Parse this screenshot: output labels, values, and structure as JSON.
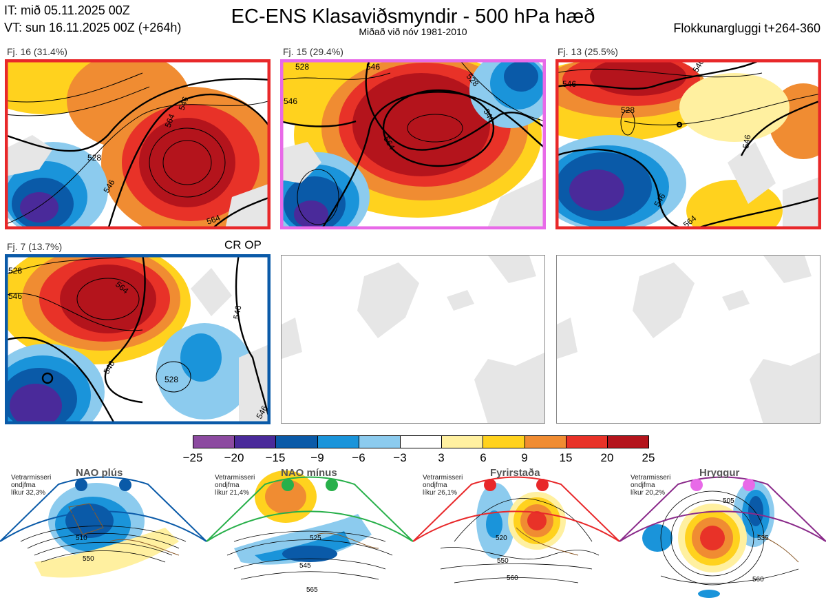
{
  "header": {
    "it_line": "IT: mið 05.11.2025 00Z",
    "vt_line": "VT: sun 16.11.2025 00Z  (+264h)",
    "title": "EC-ENS Klasaviðsmyndir - 500 hPa hæð",
    "subtitle": "Miðað við nóv 1981-2010",
    "window": "Flokkunargluggi t+264-360"
  },
  "clusters": [
    {
      "label": "Fj. 16 (31.4%)",
      "border": "#e8282a",
      "contours": [
        "528",
        "546",
        "564",
        "546",
        "564"
      ]
    },
    {
      "label": "Fj. 15 (29.4%)",
      "border": "#e86ae8",
      "contours": [
        "528",
        "546",
        "564",
        "546",
        "528",
        "546"
      ]
    },
    {
      "label": "Fj. 13 (25.5%)",
      "border": "#e8282a",
      "contours": [
        "546",
        "528",
        "546",
        "564",
        "546",
        "546"
      ]
    },
    {
      "label": "Fj. 7 (13.7%)",
      "border": "#0a5aa8",
      "contours": [
        "528",
        "546",
        "564",
        "546",
        "528",
        "546",
        "546"
      ],
      "tag": "CR OP"
    }
  ],
  "colorbar": {
    "colors": [
      "#8c4aa0",
      "#4a2a9a",
      "#0a5aa8",
      "#1a94da",
      "#8ccbee",
      "#ffffff",
      "#fff0a0",
      "#ffd21e",
      "#f08c32",
      "#e83228",
      "#b4141c"
    ],
    "ticks": [
      "−25",
      "−20",
      "−15",
      "−9",
      "−6",
      "−3",
      "3",
      "6",
      "9",
      "15",
      "20",
      "25"
    ]
  },
  "regimes": [
    {
      "title": "NAO plús",
      "info": [
        "Vetrarmisseri",
        "ondjfma",
        "líkur 32,3%"
      ],
      "color": "#0a5aa8",
      "contours": [
        "510",
        "550"
      ]
    },
    {
      "title": "NAO mínus",
      "info": [
        "Vetrarmisseri",
        "ondjfma",
        "líkur 21,4%"
      ],
      "color": "#28b04a",
      "contours": [
        "525",
        "545",
        "565"
      ]
    },
    {
      "title": "Fyrirstaða",
      "info": [
        "Vetrarmisseri",
        "ondjfma",
        "líkur 26,1%"
      ],
      "color": "#e8282a",
      "contours": [
        "520",
        "550",
        "560"
      ]
    },
    {
      "title": "Hryggur",
      "info": [
        "Vetrarmisseri",
        "ondjfma",
        "líkur 20,2%"
      ],
      "color": "#e86ae8",
      "contours": [
        "505",
        "535",
        "560"
      ]
    }
  ]
}
